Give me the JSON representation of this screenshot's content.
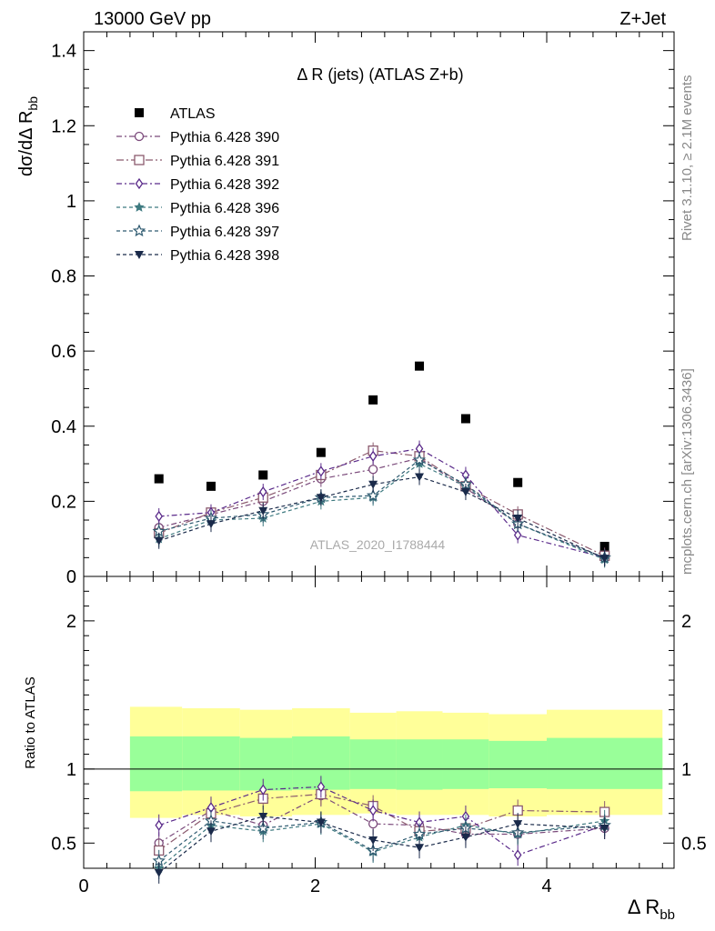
{
  "header": {
    "left": "13000 GeV pp",
    "right": "Z+Jet"
  },
  "side_labels": {
    "top": "Rivet 3.1.10, ≥ 2.1M events",
    "bottom": "mcplots.cern.ch [arXiv:1306.3436]"
  },
  "chart_data": [
    {
      "type": "scatter",
      "title": "Δ R (jets) (ATLAS Z+b)",
      "watermark": "ATLAS_2020_I1788444",
      "ylabel": "dσ/dΔ R_bb",
      "xlim": [
        0,
        5.1
      ],
      "ylim": [
        0,
        1.45
      ],
      "yticks": [
        0,
        0.2,
        0.4,
        0.6,
        0.8,
        1,
        1.2,
        1.4
      ],
      "ytick_labels": [
        "0",
        "0.2",
        "0.4",
        "0.6",
        "0.8",
        "1",
        "1.2",
        "1.4"
      ],
      "x": [
        0.65,
        1.1,
        1.55,
        2.05,
        2.5,
        2.9,
        3.3,
        3.75,
        4.5
      ],
      "legend_position": "top-left",
      "series": [
        {
          "name": "ATLAS",
          "marker": "filled-square",
          "color": "#000000",
          "values": [
            0.26,
            0.24,
            0.27,
            0.33,
            0.47,
            0.56,
            0.42,
            0.25,
            0.08
          ]
        },
        {
          "name": "Pythia 6.428 390",
          "marker": "open-circle",
          "color": "#7b4a7b",
          "dash": "6,3,2,3",
          "values": [
            0.13,
            0.165,
            0.2,
            0.26,
            0.285,
            0.315,
            0.235,
            0.14,
            0.05
          ]
        },
        {
          "name": "Pythia 6.428 391",
          "marker": "open-square",
          "color": "#8b5a6e",
          "dash": "8,3,2,3",
          "values": [
            0.115,
            0.17,
            0.21,
            0.27,
            0.335,
            0.32,
            0.24,
            0.165,
            0.055
          ]
        },
        {
          "name": "Pythia 6.428 392",
          "marker": "open-diamond",
          "color": "#5a2a8a",
          "dash": "6,3,2,3",
          "values": [
            0.16,
            0.17,
            0.225,
            0.28,
            0.32,
            0.34,
            0.27,
            0.11,
            0.05
          ]
        },
        {
          "name": "Pythia 6.428 396",
          "marker": "filled-star",
          "color": "#3e7a80",
          "dash": "4,3",
          "values": [
            0.1,
            0.15,
            0.155,
            0.2,
            0.21,
            0.3,
            0.24,
            0.14,
            0.045
          ]
        },
        {
          "name": "Pythia 6.428 397",
          "marker": "open-star",
          "color": "#2e5a70",
          "dash": "4,3",
          "values": [
            0.12,
            0.155,
            0.165,
            0.21,
            0.215,
            0.31,
            0.245,
            0.14,
            0.05
          ]
        },
        {
          "name": "Pythia 6.428 398",
          "marker": "filled-triangle-down",
          "color": "#1a2a4a",
          "dash": "4,3",
          "values": [
            0.095,
            0.14,
            0.175,
            0.21,
            0.245,
            0.265,
            0.225,
            0.155,
            0.048
          ]
        }
      ]
    },
    {
      "type": "scatter",
      "title": "",
      "xlabel": "Δ R_bb",
      "ylabel": "Ratio to ATLAS",
      "xlim": [
        0,
        5.1
      ],
      "ylim": [
        0.33,
        2.3
      ],
      "xticks": [
        0,
        2,
        4
      ],
      "xtick_labels": [
        "0",
        "2",
        "4"
      ],
      "yticks": [
        0.5,
        1,
        2
      ],
      "ytick_labels": [
        "0.5",
        "1",
        "2"
      ],
      "bands": {
        "edges": [
          0.4,
          0.85,
          1.35,
          1.8,
          2.3,
          2.7,
          3.1,
          3.5,
          4.0,
          5.0
        ],
        "yellow_low": [
          0.67,
          0.69,
          0.68,
          0.69,
          0.7,
          0.69,
          0.69,
          0.68,
          0.69
        ],
        "yellow_high": [
          1.42,
          1.41,
          1.4,
          1.41,
          1.38,
          1.39,
          1.38,
          1.37,
          1.4
        ],
        "green_low": [
          0.85,
          0.855,
          0.855,
          0.86,
          0.865,
          0.86,
          0.865,
          0.87,
          0.865
        ],
        "green_high": [
          1.22,
          1.22,
          1.21,
          1.22,
          1.2,
          1.2,
          1.2,
          1.19,
          1.21
        ]
      },
      "x": [
        0.65,
        1.1,
        1.55,
        2.05,
        2.5,
        2.9,
        3.3,
        3.75,
        4.5
      ],
      "series": [
        {
          "name": "Pythia 6.428 390",
          "values": [
            0.5,
            0.72,
            0.62,
            0.82,
            0.63,
            0.62,
            0.56,
            0.56,
            0.6
          ]
        },
        {
          "name": "Pythia 6.428 391",
          "values": [
            0.45,
            0.7,
            0.8,
            0.83,
            0.75,
            0.58,
            0.6,
            0.72,
            0.71
          ]
        },
        {
          "name": "Pythia 6.428 392",
          "values": [
            0.62,
            0.74,
            0.86,
            0.88,
            0.72,
            0.64,
            0.68,
            0.42,
            0.62
          ]
        },
        {
          "name": "Pythia 6.428 396",
          "values": [
            0.33,
            0.62,
            0.58,
            0.63,
            0.44,
            0.54,
            0.62,
            0.56,
            0.65
          ]
        },
        {
          "name": "Pythia 6.428 397",
          "values": [
            0.38,
            0.65,
            0.6,
            0.64,
            0.45,
            0.56,
            0.6,
            0.57,
            0.62
          ]
        },
        {
          "name": "Pythia 6.428 398",
          "values": [
            0.3,
            0.58,
            0.68,
            0.64,
            0.52,
            0.47,
            0.54,
            0.63,
            0.6
          ]
        }
      ]
    }
  ]
}
